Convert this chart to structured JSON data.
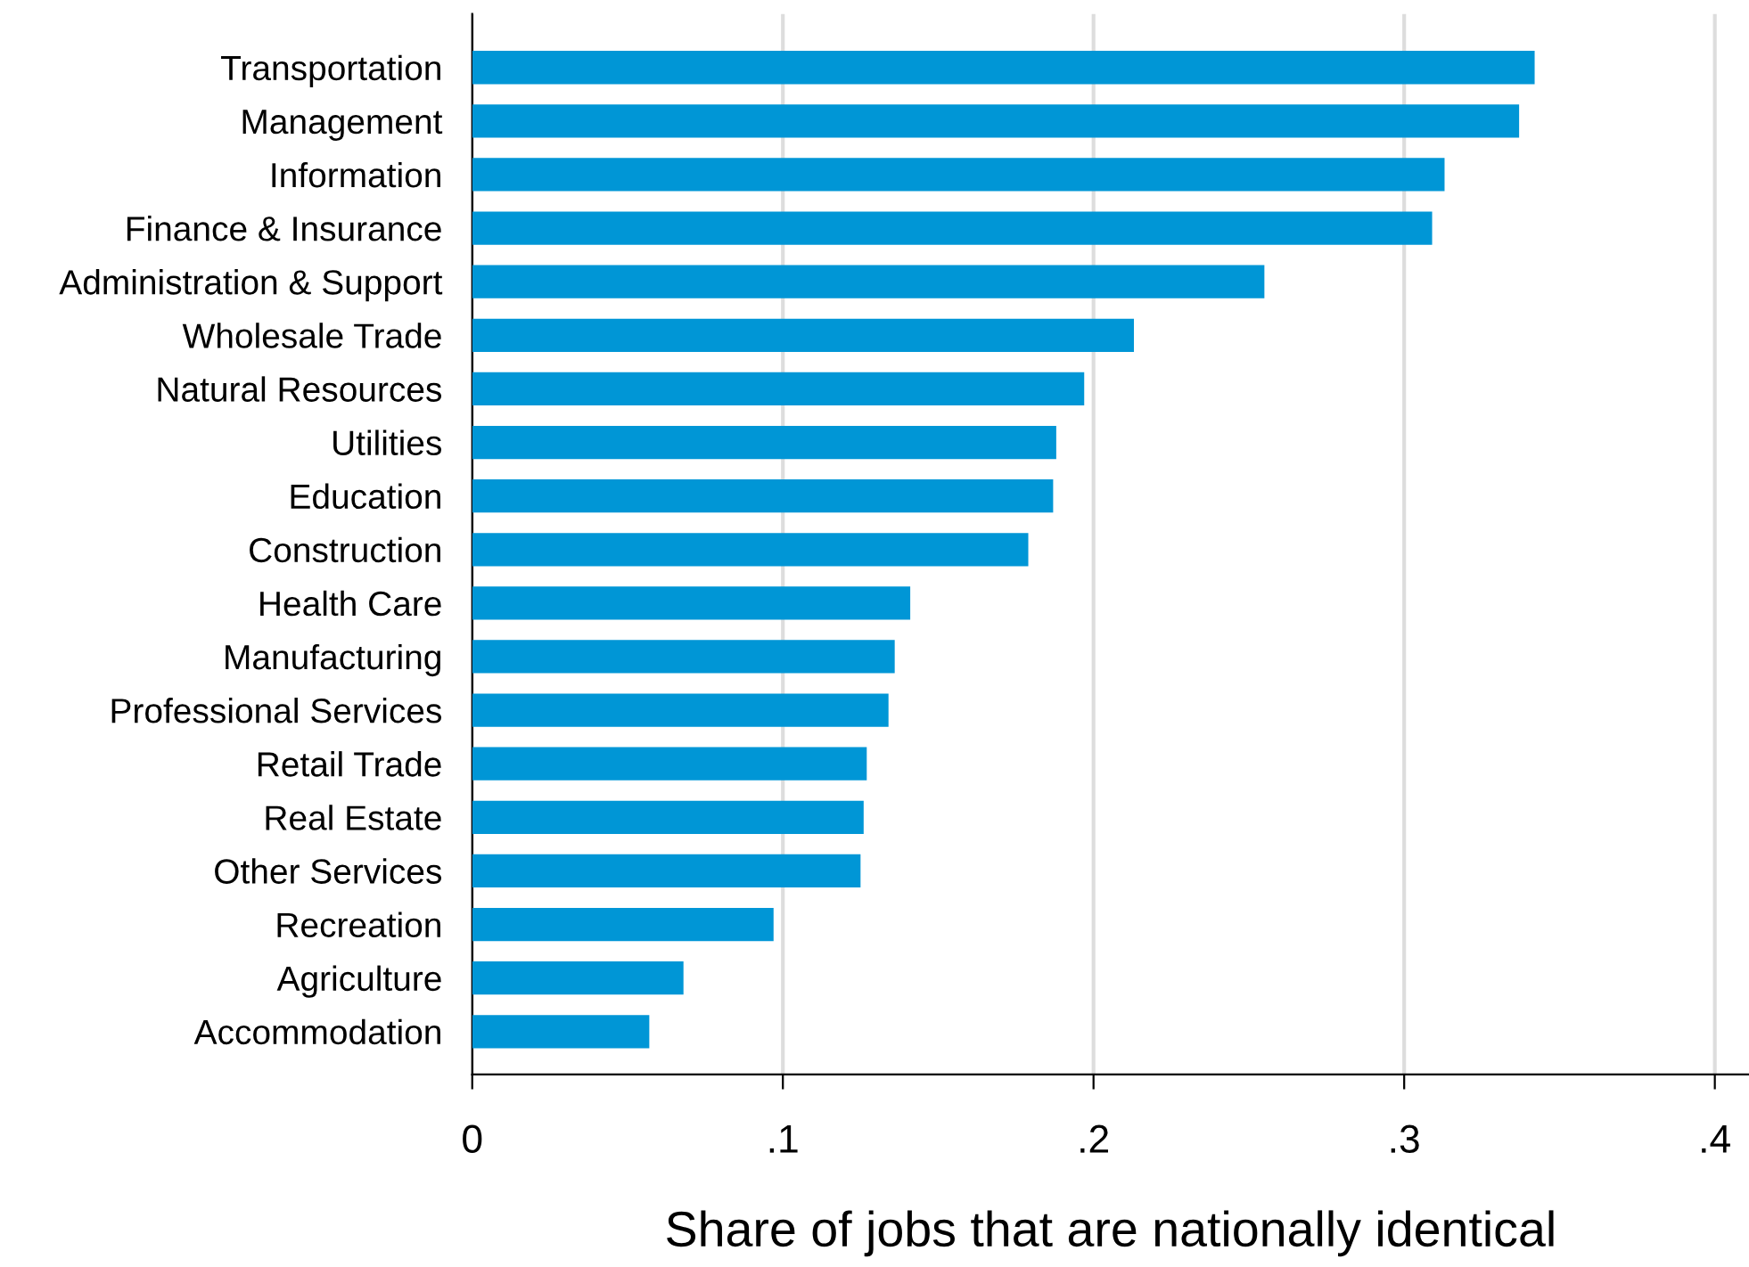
{
  "chart_data": {
    "type": "bar",
    "orientation": "horizontal",
    "xlabel": "Share of jobs that are nationally identical",
    "categories": [
      "Transportation",
      "Management",
      "Information",
      "Finance & Insurance",
      "Administration & Support",
      "Wholesale Trade",
      "Natural Resources",
      "Utilities",
      "Education",
      "Construction",
      "Health Care",
      "Manufacturing",
      "Professional Services",
      "Retail Trade",
      "Real Estate",
      "Other Services",
      "Recreation",
      "Agriculture",
      "Accommodation"
    ],
    "values": [
      0.342,
      0.337,
      0.313,
      0.309,
      0.255,
      0.213,
      0.197,
      0.188,
      0.187,
      0.179,
      0.141,
      0.136,
      0.134,
      0.127,
      0.126,
      0.125,
      0.097,
      0.068,
      0.057
    ],
    "color": "#0096d6",
    "xlim": [
      0,
      0.411
    ],
    "xticks": [
      0,
      {
        "value": 0.1,
        "label": ".1"
      },
      {
        "value": 0.2,
        "label": ".2"
      },
      {
        "value": 0.3,
        "label": ".3"
      },
      {
        "value": 0.4,
        "label": ".4"
      }
    ],
    "grid": "x",
    "legend": false
  }
}
